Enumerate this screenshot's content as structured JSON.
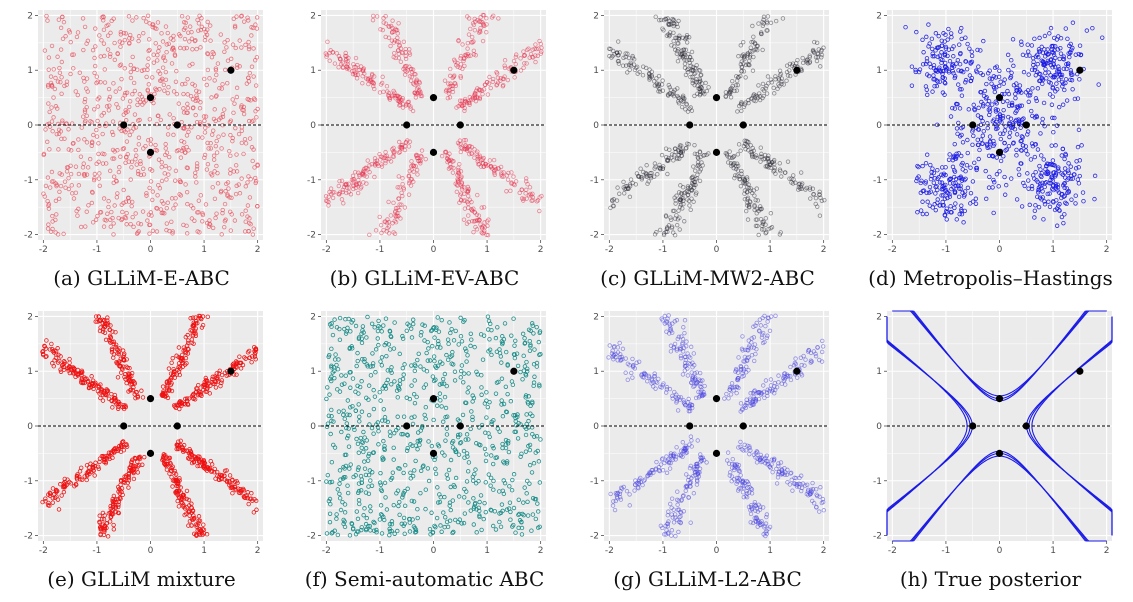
{
  "figure": {
    "panels": [
      {
        "caption": "(a) GLLiM-E-ABC",
        "style": "open-circle",
        "color": "#e8515f",
        "alpha": 0.75,
        "pattern": "uniform",
        "seed": 11
      },
      {
        "caption": "(b) GLLiM-EV-ABC",
        "style": "open-circle",
        "color": "#e8304a",
        "alpha": 0.55,
        "pattern": "star",
        "seed": 23
      },
      {
        "caption": "(c) GLLiM-MW2-ABC",
        "style": "open-circle",
        "color": "#2a2a35",
        "alpha": 0.5,
        "pattern": "star",
        "seed": 37
      },
      {
        "caption": "(d) Metropolis–Hastings",
        "style": "open-circle",
        "color": "#1a1ae6",
        "alpha": 0.9,
        "pattern": "quadrant",
        "seed": 41
      },
      {
        "caption": "(e)  GLLiM mixture",
        "style": "open-circle",
        "color": "#ee1111",
        "alpha": 0.95,
        "pattern": "star-tight",
        "seed": 53
      },
      {
        "caption": "(f) Semi-automatic ABC",
        "style": "open-circle",
        "color": "#138a86",
        "alpha": 0.95,
        "pattern": "uniform",
        "seed": 67
      },
      {
        "caption": "(g)  GLLiM-L2-ABC",
        "style": "open-circle",
        "color": "#4a46e0",
        "alpha": 0.55,
        "pattern": "star",
        "seed": 71
      },
      {
        "caption": "(h)  True posterior",
        "style": "lines",
        "color": "#1a1ae6",
        "alpha": 1.0,
        "pattern": "curves",
        "seed": 83
      }
    ]
  },
  "chart_data": {
    "type": "scatter",
    "xlim": [
      -2.1,
      2.1
    ],
    "ylim": [
      -2.1,
      2.1
    ],
    "x_ticks": [
      -2,
      -1,
      0,
      1,
      2
    ],
    "y_ticks": [
      -2,
      -1,
      0,
      1,
      2
    ],
    "grid": true,
    "reference_line": {
      "y": 0,
      "style": "dashed"
    },
    "highlight_points": [
      {
        "x": 0,
        "y": 0.5
      },
      {
        "x": -0.5,
        "y": 0
      },
      {
        "x": 0.5,
        "y": 0
      },
      {
        "x": 0,
        "y": -0.5
      },
      {
        "x": 1.5,
        "y": 1
      }
    ],
    "star_arm_angles_deg": [
      35,
      65,
      115,
      145,
      215,
      245,
      295,
      325
    ],
    "quadrant_centers": [
      [
        -1,
        1.1
      ],
      [
        1,
        1.1
      ],
      [
        -1,
        -1.1
      ],
      [
        1,
        -1.1
      ]
    ]
  }
}
